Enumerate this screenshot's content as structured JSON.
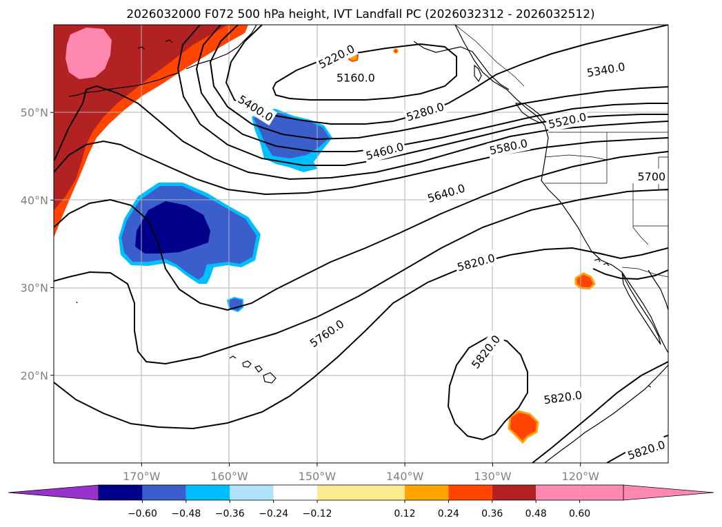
{
  "chart_data": {
    "type": "contour_map",
    "title": "2026032000 F072 500 hPa height, IVT Landfall PC (2026032312 - 2026032512)",
    "x_axis": {
      "ticks": [
        -170,
        -160,
        -150,
        -140,
        -130,
        -120
      ],
      "tick_labels": [
        "170°W",
        "160°W",
        "150°W",
        "140°W",
        "130°W",
        "120°W"
      ],
      "range": [
        -180,
        -110
      ]
    },
    "y_axis": {
      "ticks": [
        20,
        30,
        40,
        50
      ],
      "tick_labels": [
        "20°N",
        "30°N",
        "40°N",
        "50°N"
      ],
      "range": [
        10,
        60
      ]
    },
    "gridlines": true,
    "contours": {
      "field": "500 hPa height",
      "levels": [
        5160,
        5220,
        5280,
        5340,
        5400,
        5460,
        5520,
        5580,
        5640,
        5700,
        5760,
        5820
      ],
      "labels": [
        {
          "text": "5220.0",
          "lon": -147.8,
          "lat": 56.4
        },
        {
          "text": "5160.0",
          "lon": -145.6,
          "lat": 54.0
        },
        {
          "text": "5340.0",
          "lon": -117.1,
          "lat": 54.9
        },
        {
          "text": "5400.0",
          "lon": -157.0,
          "lat": 50.5
        },
        {
          "text": "5280.0",
          "lon": -137.7,
          "lat": 50.1
        },
        {
          "text": "5520.0",
          "lon": -121.5,
          "lat": 49.1
        },
        {
          "text": "5460.0",
          "lon": -142.3,
          "lat": 45.6
        },
        {
          "text": "5580.0",
          "lon": -128.2,
          "lat": 46.1
        },
        {
          "text": "5700",
          "lon": -111.9,
          "lat": 42.7
        },
        {
          "text": "5640.0",
          "lon": -135.3,
          "lat": 40.8
        },
        {
          "text": "5820.0",
          "lon": -131.9,
          "lat": 32.9
        },
        {
          "text": "5760.0",
          "lon": -148.9,
          "lat": 24.8
        },
        {
          "text": "5820.0",
          "lon": -130.8,
          "lat": 22.7
        },
        {
          "text": "5820.0",
          "lon": -122.0,
          "lat": 17.5
        },
        {
          "text": "5820.0",
          "lon": -112.5,
          "lat": 11.5
        }
      ]
    },
    "filled_field": {
      "name": "IVT Landfall PC",
      "period": "2026032312 - 2026032512",
      "features": [
        {
          "sign": "positive",
          "region": "northwest corner, Gulf of Alaska west",
          "max_value": 0.72
        },
        {
          "sign": "positive",
          "region": "small spots near 145°W 56°N",
          "max_value": 0.3
        },
        {
          "sign": "negative",
          "region": "155°W-150°W, 43°N-48°N",
          "min_value": -0.36
        },
        {
          "sign": "negative",
          "region": "168°W-158°W, 30°N-42°N",
          "min_value": -0.55
        },
        {
          "sign": "negative",
          "region": "near 160°W 29°N",
          "min_value": -0.36
        },
        {
          "sign": "positive",
          "region": "near 120°W 31°N",
          "max_value": 0.4
        },
        {
          "sign": "positive",
          "region": "near 127°W 14°N",
          "max_value": 0.42
        }
      ]
    },
    "colorbar": {
      "ticks": [
        "−0.60",
        "−0.48",
        "−0.36",
        "−0.24",
        "−0.12",
        "0.12",
        "0.24",
        "0.36",
        "0.48",
        "0.60"
      ],
      "bounds": [
        -0.72,
        -0.6,
        -0.48,
        -0.36,
        -0.24,
        -0.12,
        0.12,
        0.24,
        0.36,
        0.48,
        0.6,
        0.72
      ],
      "colors": [
        "#9932CC",
        "#00008B",
        "#3A5FCD",
        "#00BFFF",
        "#AEE3FB",
        "#FFFFFF",
        "#FDEB8F",
        "#FFA500",
        "#FF4500",
        "#B22222",
        "#FF88B0",
        "#FF88B0"
      ]
    }
  }
}
